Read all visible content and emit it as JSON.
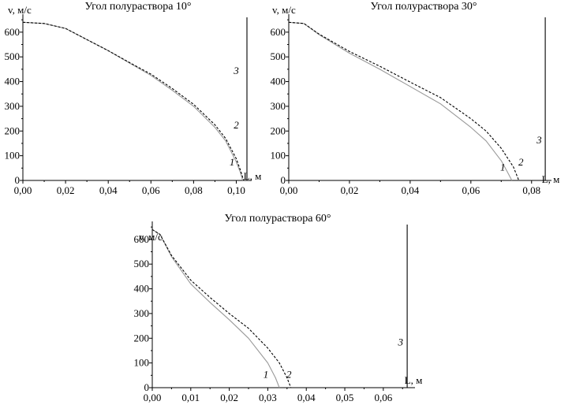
{
  "chart_data": [
    {
      "type": "line",
      "title": "Угол полураствора 10°",
      "ylabel": "v, м/с",
      "xlabel": "L, м",
      "xlim": [
        0,
        0.105
      ],
      "ylim": [
        0,
        660
      ],
      "xticks": [
        "0,00",
        "0,02",
        "0,04",
        "0,06",
        "0,08",
        "0,10"
      ],
      "xtick_values": [
        0,
        0.02,
        0.04,
        0.06,
        0.08,
        0.1
      ],
      "yticks": [
        "0",
        "100",
        "200",
        "300",
        "400",
        "500",
        "600"
      ],
      "ytick_values": [
        0,
        100,
        200,
        300,
        400,
        500,
        600
      ],
      "series": [
        {
          "name": "1",
          "style": "solid",
          "color": "#999999",
          "x": [
            0,
            0.01,
            0.02,
            0.03,
            0.04,
            0.05,
            0.06,
            0.07,
            0.08,
            0.09,
            0.095,
            0.1,
            0.102,
            0.103
          ],
          "y": [
            640,
            635,
            615,
            570,
            525,
            475,
            425,
            365,
            300,
            215,
            160,
            75,
            30,
            0
          ]
        },
        {
          "name": "2",
          "style": "dashed",
          "color": "#000000",
          "x": [
            0,
            0.01,
            0.02,
            0.03,
            0.04,
            0.05,
            0.06,
            0.07,
            0.08,
            0.09,
            0.095,
            0.1,
            0.102,
            0.1035
          ],
          "y": [
            640,
            635,
            615,
            570,
            525,
            477,
            430,
            372,
            308,
            225,
            170,
            88,
            40,
            0
          ]
        },
        {
          "name": "3",
          "style": "solid",
          "color": "#000000",
          "x": [
            0.105,
            0.105
          ],
          "y": [
            0,
            660
          ]
        }
      ],
      "curve_labels": [
        {
          "text": "1",
          "x": 0.098,
          "y": 60
        },
        {
          "text": "2",
          "x": 0.1,
          "y": 210
        },
        {
          "text": "3",
          "x": 0.1,
          "y": 430
        }
      ]
    },
    {
      "type": "line",
      "title": "Угол полураствора 30°",
      "ylabel": "v, м/с",
      "xlabel": "L, м",
      "xlim": [
        0,
        0.085
      ],
      "ylim": [
        0,
        660
      ],
      "xticks": [
        "0,00",
        "0,02",
        "0,04",
        "0,06",
        "0,08"
      ],
      "xtick_values": [
        0,
        0.02,
        0.04,
        0.06,
        0.08
      ],
      "yticks": [
        "0",
        "100",
        "200",
        "300",
        "400",
        "500",
        "600"
      ],
      "ytick_values": [
        0,
        100,
        200,
        300,
        400,
        500,
        600
      ],
      "series": [
        {
          "name": "1",
          "style": "solid",
          "color": "#999999",
          "x": [
            0,
            0.005,
            0.01,
            0.02,
            0.03,
            0.04,
            0.05,
            0.06,
            0.065,
            0.07,
            0.072,
            0.0735
          ],
          "y": [
            640,
            635,
            590,
            515,
            450,
            380,
            310,
            215,
            160,
            80,
            35,
            0
          ]
        },
        {
          "name": "2",
          "style": "dashed",
          "color": "#000000",
          "x": [
            0,
            0.005,
            0.01,
            0.02,
            0.03,
            0.04,
            0.05,
            0.06,
            0.065,
            0.07,
            0.074,
            0.0758
          ],
          "y": [
            640,
            635,
            592,
            522,
            462,
            398,
            335,
            250,
            200,
            130,
            55,
            0
          ]
        },
        {
          "name": "3",
          "style": "solid",
          "color": "#000000",
          "x": [
            0.0845,
            0.0845
          ],
          "y": [
            0,
            660
          ]
        }
      ],
      "curve_labels": [
        {
          "text": "1",
          "x": 0.0705,
          "y": 40
        },
        {
          "text": "2",
          "x": 0.0765,
          "y": 60
        },
        {
          "text": "3",
          "x": 0.0825,
          "y": 150
        }
      ]
    },
    {
      "type": "line",
      "title": "Угол полураствора 60°",
      "ylabel": "v, м/с",
      "xlabel": "L, м",
      "xlim": [
        0,
        0.067
      ],
      "ylim": [
        0,
        660
      ],
      "xticks": [
        "0,00",
        "0,01",
        "0,02",
        "0,03",
        "0,04",
        "0,05",
        "0,06"
      ],
      "xtick_values": [
        0,
        0.01,
        0.02,
        0.03,
        0.04,
        0.05,
        0.06
      ],
      "yticks": [
        "0",
        "100",
        "200",
        "300",
        "400",
        "500",
        "600"
      ],
      "ytick_values": [
        0,
        100,
        200,
        300,
        400,
        500,
        600
      ],
      "series": [
        {
          "name": "1",
          "style": "solid",
          "color": "#999999",
          "x": [
            0,
            0.002,
            0.005,
            0.01,
            0.015,
            0.02,
            0.025,
            0.03,
            0.032,
            0.033
          ],
          "y": [
            640,
            620,
            530,
            420,
            345,
            275,
            200,
            100,
            40,
            0
          ]
        },
        {
          "name": "2",
          "style": "dashed",
          "color": "#000000",
          "x": [
            0,
            0.002,
            0.005,
            0.01,
            0.015,
            0.02,
            0.025,
            0.03,
            0.033,
            0.035,
            0.036
          ],
          "y": [
            640,
            620,
            535,
            435,
            365,
            300,
            240,
            160,
            100,
            40,
            0
          ]
        },
        {
          "name": "3",
          "style": "solid",
          "color": "#000000",
          "x": [
            0.0662,
            0.0662
          ],
          "y": [
            0,
            660
          ]
        }
      ],
      "curve_labels": [
        {
          "text": "1",
          "x": 0.0295,
          "y": 40
        },
        {
          "text": "2",
          "x": 0.0355,
          "y": 40
        },
        {
          "text": "3",
          "x": 0.0645,
          "y": 170
        }
      ]
    }
  ]
}
